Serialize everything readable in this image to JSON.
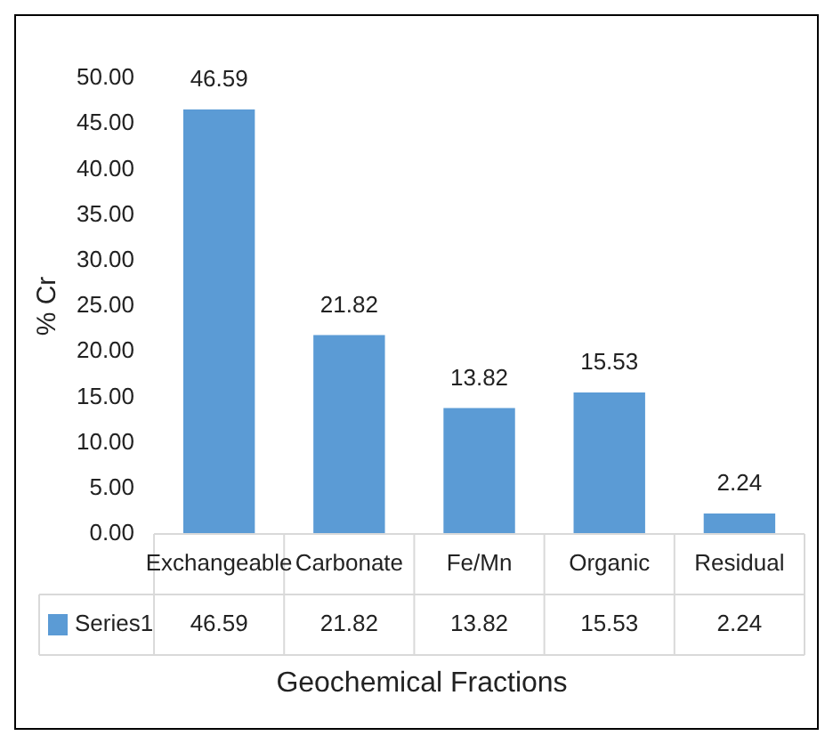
{
  "chart_data": {
    "type": "bar",
    "ylabel": "% Cr",
    "xlabel": "Geochemical Fractions",
    "categories": [
      "Exchangeable",
      "Carbonate",
      "Fe/Mn",
      "Organic",
      "Residual"
    ],
    "series": [
      {
        "name": "Series1",
        "color": "#5b9bd5",
        "values": [
          46.59,
          21.82,
          13.82,
          15.53,
          2.24
        ]
      }
    ],
    "annotations": [
      {
        "text": "46.59",
        "x": "Exchangeable",
        "y": 46.59
      },
      {
        "text": "21.82",
        "x": "Carbonate",
        "y": 21.82
      },
      {
        "text": "13.82",
        "x": "Fe/Mn",
        "y": 13.82
      },
      {
        "text": "15.53",
        "x": "Organic",
        "y": 15.53
      },
      {
        "text": "2.24",
        "x": "Residual",
        "y": 2.24
      }
    ],
    "ylim": [
      0,
      50
    ],
    "yticks": [
      {
        "value": 0,
        "label": "0.00"
      },
      {
        "value": 5,
        "label": "5.00"
      },
      {
        "value": 10,
        "label": "10.00"
      },
      {
        "value": 15,
        "label": "15.00"
      },
      {
        "value": 20,
        "label": "20.00"
      },
      {
        "value": 25,
        "label": "25.00"
      },
      {
        "value": 30,
        "label": "30.00"
      },
      {
        "value": 35,
        "label": "35.00"
      },
      {
        "value": 40,
        "label": "40.00"
      },
      {
        "value": 45,
        "label": "45.00"
      },
      {
        "value": 50,
        "label": "50.00"
      }
    ],
    "grid": false,
    "data_labels": true
  }
}
